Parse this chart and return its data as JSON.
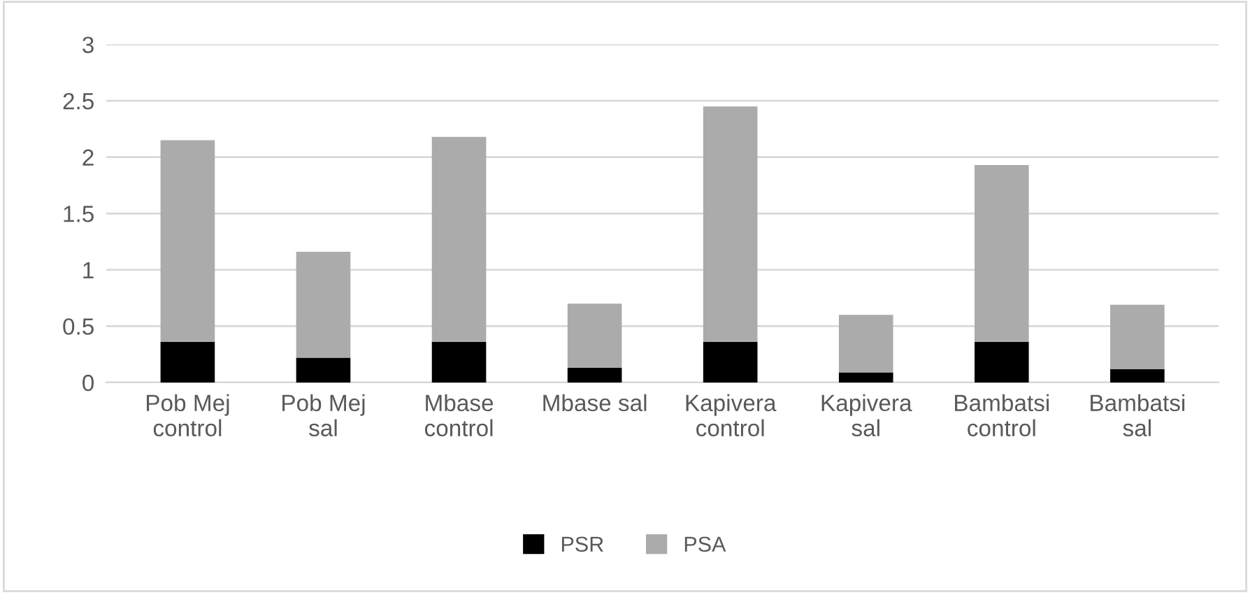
{
  "chart_data": {
    "type": "bar",
    "stacked": true,
    "categories": [
      "Pob Mej\ncontrol",
      "Pob Mej\nsal",
      "Mbase\ncontrol",
      "Mbase sal",
      "Kapivera\ncontrol",
      "Kapivera\nsal",
      "Bambatsi\ncontrol",
      "Bambatsi\nsal"
    ],
    "series": [
      {
        "name": "PSR",
        "color": "#000000",
        "values": [
          0.36,
          0.22,
          0.36,
          0.13,
          0.36,
          0.09,
          0.36,
          0.12
        ]
      },
      {
        "name": "PSA",
        "color": "#ababab",
        "values": [
          1.79,
          0.94,
          1.82,
          0.57,
          2.09,
          0.51,
          1.57,
          0.57
        ]
      }
    ],
    "ylim": [
      0,
      3
    ],
    "yticks": [
      0,
      0.5,
      1,
      1.5,
      2,
      2.5,
      3
    ],
    "grid": "y",
    "legend": "bottom"
  }
}
